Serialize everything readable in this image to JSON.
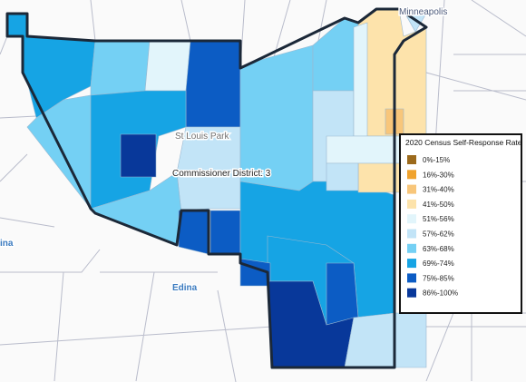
{
  "map_labels": {
    "city_north": "Minneapolis",
    "city_center": "St Louis Park",
    "district": "Commissioner District: 3",
    "city_south": "Edina",
    "city_west_partial": "ina"
  },
  "legend": {
    "title": "2020 Census Self-Response Rate",
    "items": [
      {
        "label": "0%-15%",
        "color": "#9c6a1c"
      },
      {
        "label": "16%-30%",
        "color": "#f0a32e"
      },
      {
        "label": "31%-40%",
        "color": "#f8c67a"
      },
      {
        "label": "41%-50%",
        "color": "#fde3ab"
      },
      {
        "label": "51%-56%",
        "color": "#e2f5fb"
      },
      {
        "label": "57%-62%",
        "color": "#c2e4f7"
      },
      {
        "label": "63%-68%",
        "color": "#74d0f4"
      },
      {
        "label": "69%-74%",
        "color": "#16a4e4"
      },
      {
        "label": "75%-85%",
        "color": "#0c5cc4"
      },
      {
        "label": "86%-100%",
        "color": "#08389a"
      }
    ]
  }
}
